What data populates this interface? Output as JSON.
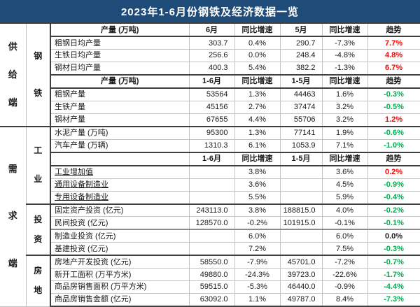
{
  "title": "2023年1-6月份钢铁及经济数据一览",
  "colors": {
    "title_bg": "#1f4b78",
    "title_fg": "#ffffff",
    "red": "#fe0000",
    "green": "#00b050",
    "black": "#1a1a1a"
  },
  "side": {
    "supply": "供给端",
    "demand": "需求端",
    "steel": "钢铁",
    "industry": "工业",
    "investment": "投资",
    "realestate": "房地"
  },
  "rows": [
    {
      "name": "产量 (万吨)",
      "c1": "6月",
      "c2": "同比增速",
      "c3": "5月",
      "c4": "同比增速",
      "c5": "趋势"
    },
    {
      "name": "粗钢日均产量",
      "c1": "303.7",
      "c2": "0.4%",
      "c3": "290.7",
      "c4": "-7.3%",
      "c5": "7.7%"
    },
    {
      "name": "生铁日均产量",
      "c1": "256.6",
      "c2": "0.0%",
      "c3": "248.4",
      "c4": "-4.8%",
      "c5": "4.8%"
    },
    {
      "name": "钢材日均产量",
      "c1": "400.3",
      "c2": "5.4%",
      "c3": "382.2",
      "c4": "-1.3%",
      "c5": "6.7%"
    },
    {
      "name": "产量 (万吨)",
      "c1": "1-6月",
      "c2": "同比增速",
      "c3": "1-5月",
      "c4": "同比增速",
      "c5": "趋势"
    },
    {
      "name": "粗钢产量",
      "c1": "53564",
      "c2": "1.3%",
      "c3": "44463",
      "c4": "1.6%",
      "c5": "-0.3%"
    },
    {
      "name": "生铁产量",
      "c1": "45156",
      "c2": "2.7%",
      "c3": "37474",
      "c4": "3.2%",
      "c5": "-0.5%"
    },
    {
      "name": "钢材产量",
      "c1": "67655",
      "c2": "4.4%",
      "c3": "55706",
      "c4": "3.2%",
      "c5": "1.2%"
    },
    {
      "name": "水泥产量 (万吨)",
      "c1": "95300",
      "c2": "1.3%",
      "c3": "77141",
      "c4": "1.9%",
      "c5": "-0.6%"
    },
    {
      "name": "汽车产量 (万辆)",
      "c1": "1310.3",
      "c2": "6.1%",
      "c3": "1053.9",
      "c4": "7.1%",
      "c5": "-1.0%"
    },
    {
      "name": "",
      "c1": "1-6月",
      "c2": "同比增速",
      "c3": "1-5月",
      "c4": "同比增速",
      "c5": "趋势"
    },
    {
      "name": "工业增加值",
      "c1": "",
      "c2": "3.8%",
      "c3": "",
      "c4": "3.6%",
      "c5": "0.2%"
    },
    {
      "name": "通用设备制造业",
      "c1": "",
      "c2": "3.6%",
      "c3": "",
      "c4": "4.5%",
      "c5": "-0.9%"
    },
    {
      "name": "专用设备制造业",
      "c1": "",
      "c2": "5.5%",
      "c3": "",
      "c4": "5.9%",
      "c5": "-0.4%"
    },
    {
      "name": "固定资产投资 (亿元)",
      "c1": "243113.0",
      "c2": "3.8%",
      "c3": "188815.0",
      "c4": "4.0%",
      "c5": "-0.2%"
    },
    {
      "name": "民间投资 (亿元)",
      "c1": "128570.0",
      "c2": "-0.2%",
      "c3": "101915.0",
      "c4": "-0.1%",
      "c5": "-0.1%"
    },
    {
      "name": "制造业投资 (亿元)",
      "c1": "",
      "c2": "6.0%",
      "c3": "",
      "c4": "6.0%",
      "c5": "0.0%"
    },
    {
      "name": "基建投资 (亿元)",
      "c1": "",
      "c2": "7.2%",
      "c3": "",
      "c4": "7.5%",
      "c5": "-0.3%"
    },
    {
      "name": "房地产开发投资 (亿元)",
      "c1": "58550.0",
      "c2": "-7.9%",
      "c3": "45701.0",
      "c4": "-7.2%",
      "c5": "-0.7%"
    },
    {
      "name": "新开工面积 (万平方米)",
      "c1": "49880.0",
      "c2": "-24.3%",
      "c3": "39723.0",
      "c4": "-22.6%",
      "c5": "-1.7%"
    },
    {
      "name": "商品房销售面积 (万平方米)",
      "c1": "59515.0",
      "c2": "-5.3%",
      "c3": "46440.0",
      "c4": "-0.9%",
      "c5": "-4.4%"
    },
    {
      "name": "商品房销售金额 (亿元)",
      "c1": "63092.0",
      "c2": "1.1%",
      "c3": "49787.0",
      "c4": "8.4%",
      "c5": "-7.3%"
    }
  ]
}
